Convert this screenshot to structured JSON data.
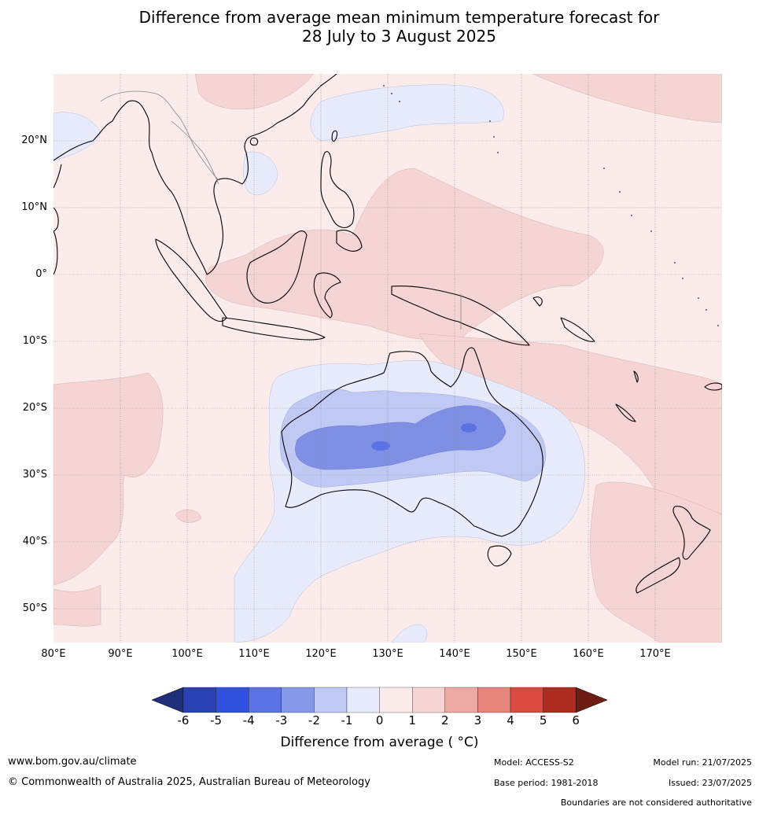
{
  "title": {
    "line1": "Difference from average mean minimum temperature forecast for",
    "line2": "28 July to 3 August 2025"
  },
  "map": {
    "lat_labels": [
      "20°N",
      "10°N",
      "0°",
      "10°S",
      "20°S",
      "30°S",
      "40°S",
      "50°S"
    ],
    "lon_labels": [
      "80°E",
      "90°E",
      "100°E",
      "110°E",
      "120°E",
      "130°E",
      "140°E",
      "150°E",
      "160°E",
      "170°E"
    ],
    "colors": {
      "land_outline": "#000000",
      "border": "#888888",
      "grid": "#8c8c8c"
    }
  },
  "colorbar": {
    "ticks": [
      "-6",
      "-5",
      "-4",
      "-3",
      "-2",
      "-1",
      "0",
      "1",
      "2",
      "3",
      "4",
      "5",
      "6"
    ],
    "colors": [
      "#1f2f7a",
      "#2a42b4",
      "#3150e0",
      "#5a72e3",
      "#8698e8",
      "#c0c8f4",
      "#e8ebfb",
      "#fbeceb",
      "#f5d5d3",
      "#edaaa5",
      "#e7847c",
      "#da4a3e",
      "#ad2b20",
      "#6e1d14"
    ],
    "title": "Difference from average ( °C)"
  },
  "footer": {
    "website": "www.bom.gov.au/climate",
    "copyright": "© Commonwealth of Australia 2025, Australian Bureau of Meteorology",
    "model": "Model: ACCESS-S2",
    "model_run": "Model run: 21/07/2025",
    "base_period": "Base period: 1981-2018",
    "issued": "Issued: 23/07/2025",
    "disclaimer": "Boundaries are not considered authoritative"
  }
}
